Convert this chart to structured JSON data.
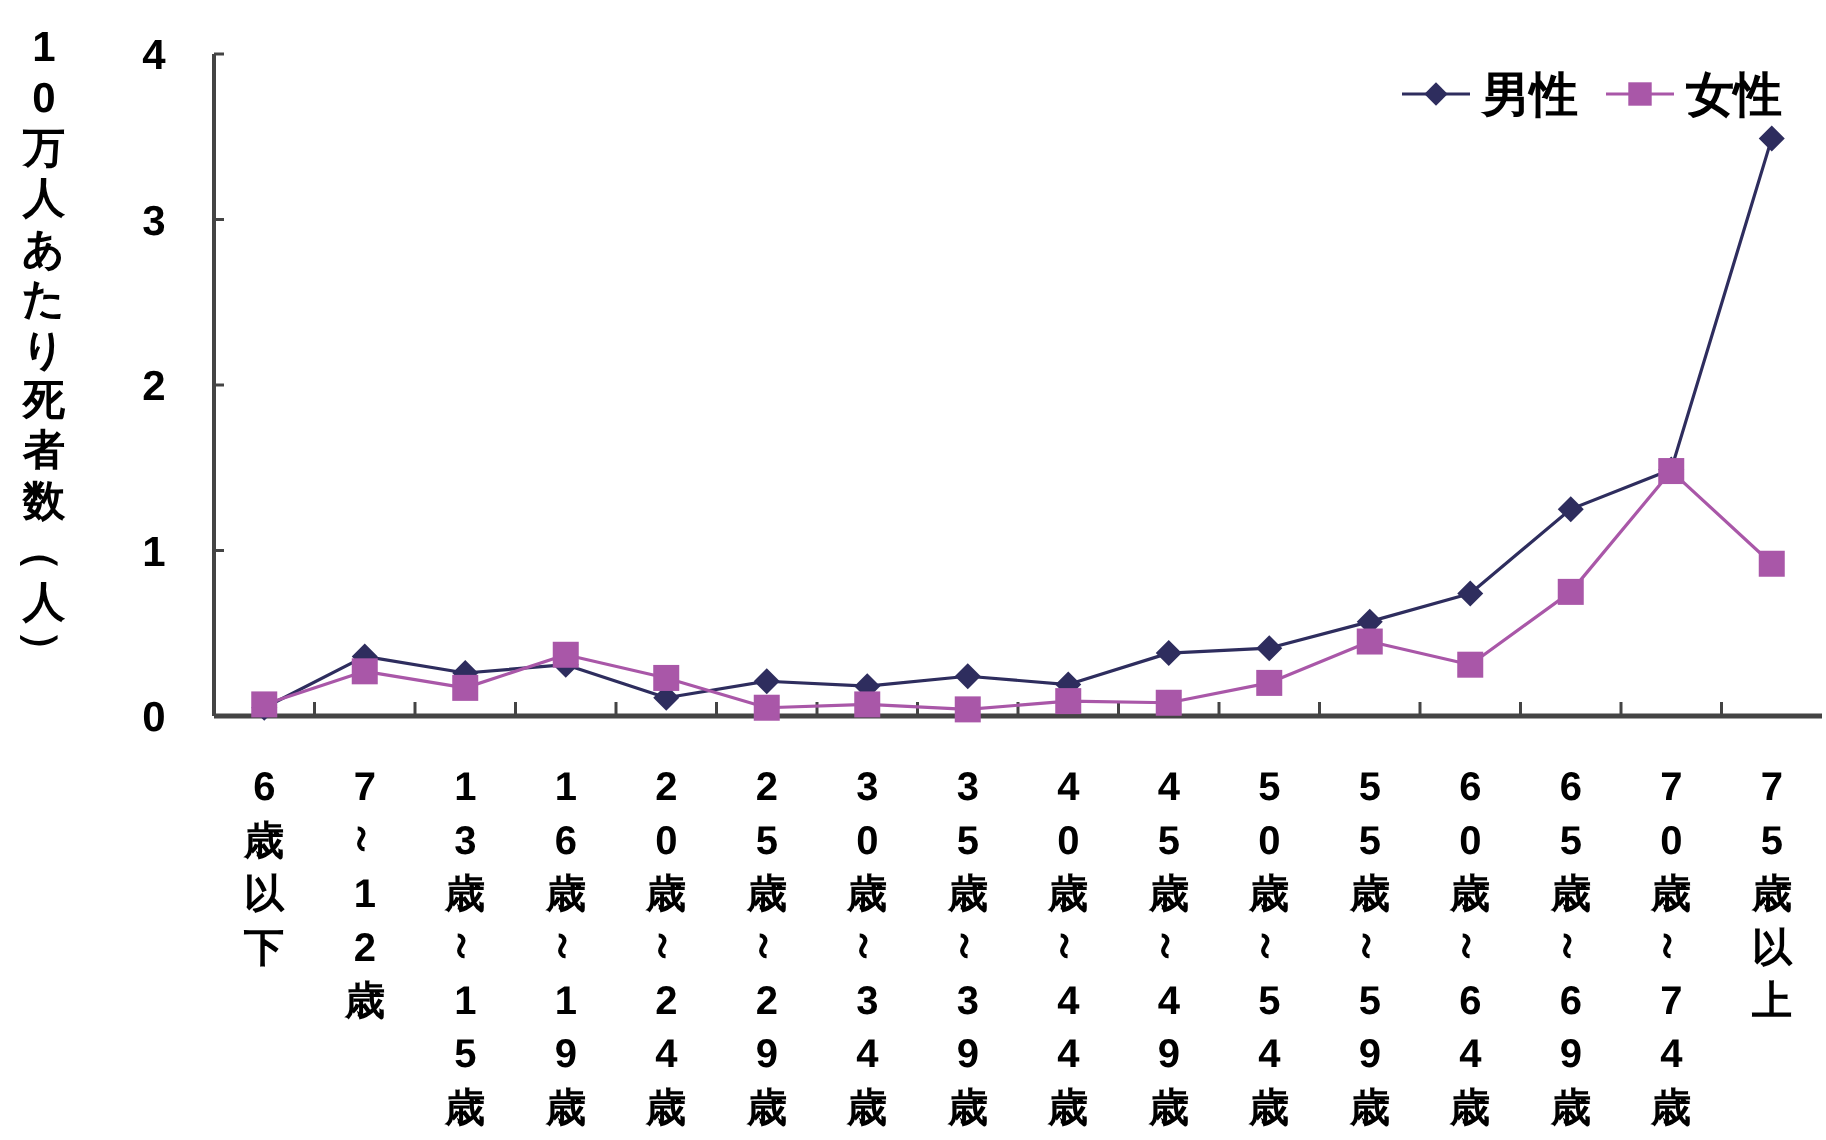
{
  "chart_data": {
    "type": "line",
    "ylabel": "10万人あたり死者数（人）",
    "categories": [
      "6歳以下",
      "7～12歳",
      "13歳～15歳",
      "16歳～19歳",
      "20歳～24歳",
      "25歳～29歳",
      "30歳～34歳",
      "35歳～39歳",
      "40歳～44歳",
      "45歳～49歳",
      "50歳～54歳",
      "55歳～59歳",
      "60歳～64歳",
      "65歳～69歳",
      "70歳～74歳",
      "75歳以上"
    ],
    "series": [
      {
        "name": "男性",
        "color": "#2e2d5e",
        "marker": "diamond",
        "values": [
          0.05,
          0.36,
          0.26,
          0.31,
          0.11,
          0.21,
          0.18,
          0.24,
          0.19,
          0.38,
          0.41,
          0.57,
          0.74,
          1.25,
          1.49,
          3.49
        ]
      },
      {
        "name": "女性",
        "color": "#a957a8",
        "marker": "square",
        "values": [
          0.07,
          0.27,
          0.17,
          0.37,
          0.23,
          0.05,
          0.07,
          0.04,
          0.09,
          0.08,
          0.2,
          0.45,
          0.31,
          0.75,
          1.48,
          0.92
        ]
      }
    ],
    "ylim": [
      0,
      4
    ],
    "yticks": [
      0,
      1,
      2,
      3,
      4
    ],
    "legend": "top right",
    "grid": false
  }
}
